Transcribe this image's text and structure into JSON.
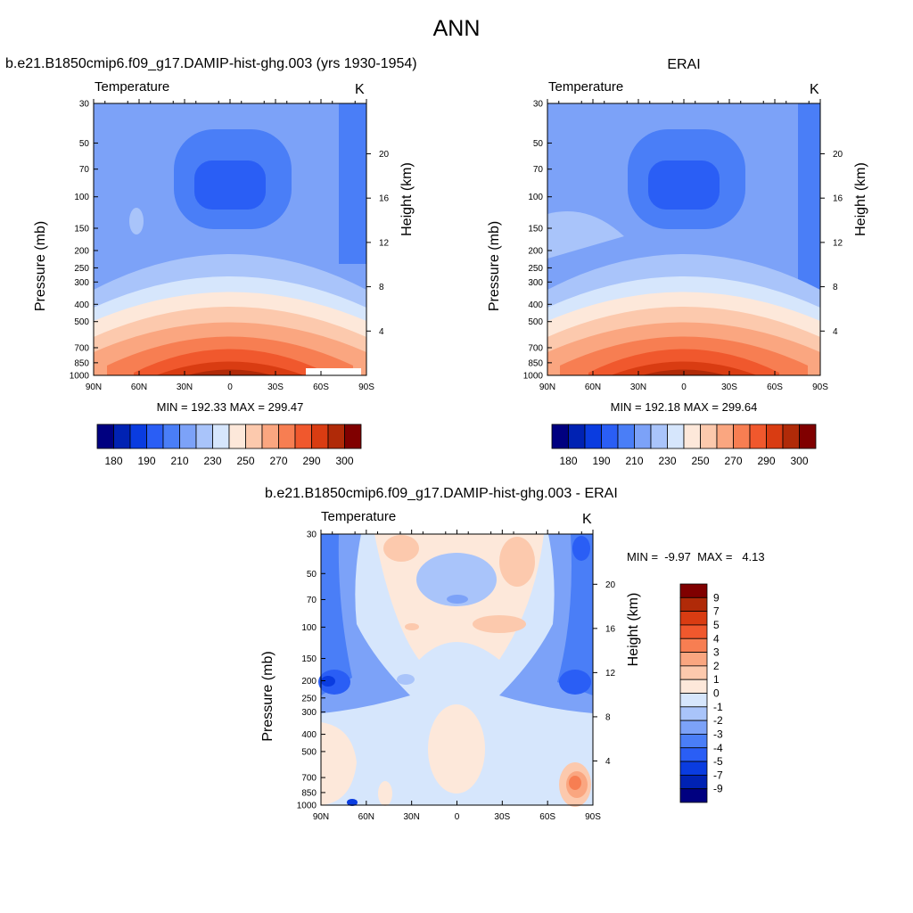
{
  "title": "ANN",
  "panel_left": {
    "title": "b.e21.B1850cmip6.f09_g17.DAMIP-hist-ghg.003 (yrs 1930-1954)",
    "variable": "Temperature",
    "unit": "K",
    "minmax": "MIN = 192.33  MAX = 299.47"
  },
  "panel_right": {
    "title": "ERAI",
    "variable": "Temperature",
    "unit": "K",
    "minmax": "MIN = 192.18  MAX = 299.64"
  },
  "panel_diff": {
    "title": "b.e21.B1850cmip6.f09_g17.DAMIP-hist-ghg.003 - ERAI",
    "variable": "Temperature",
    "unit": "K",
    "minmax": "MIN =  -9.97  MAX =   4.13"
  },
  "axes": {
    "ylabel_left": "Pressure (mb)",
    "ylabel_right": "Height (km)",
    "pressure_ticks": [
      "30",
      "50",
      "70",
      "100",
      "150",
      "200",
      "250",
      "300",
      "400",
      "500",
      "700",
      "850",
      "1000"
    ],
    "height_ticks": [
      "4",
      "8",
      "12",
      "16",
      "20"
    ],
    "lat_ticks": [
      "90N",
      "60N",
      "30N",
      "0",
      "30S",
      "60S",
      "90S"
    ]
  },
  "colorbar_abs": {
    "colors": [
      "#000080",
      "#0022b3",
      "#0a3ce0",
      "#2a5ef5",
      "#4a7ef7",
      "#7ca2f8",
      "#a9c4fa",
      "#d6e6fc",
      "#fde8da",
      "#fcc9ad",
      "#faa680",
      "#f77e52",
      "#f0582d",
      "#d93c12",
      "#b02a08",
      "#800000"
    ],
    "labels": [
      "180",
      "190",
      "210",
      "230",
      "250",
      "270",
      "290",
      "300"
    ]
  },
  "colorbar_diff": {
    "colors": [
      "#000080",
      "#0022b3",
      "#0a3ce0",
      "#2a5ef5",
      "#4a7ef7",
      "#7ca2f8",
      "#a9c4fa",
      "#d6e6fc",
      "#fde8da",
      "#fcc9ad",
      "#faa680",
      "#f77e52",
      "#f0582d",
      "#d93c12",
      "#b02a08",
      "#800000"
    ],
    "labels": [
      "-9",
      "-7",
      "-5",
      "-4",
      "-3",
      "-2",
      "-1",
      "0",
      "1",
      "2",
      "3",
      "4",
      "5",
      "7",
      "9"
    ]
  },
  "chart_data": [
    {
      "type": "heatmap",
      "title": "b.e21.B1850cmip6.f09_g17.DAMIP-hist-ghg.003 (yrs 1930-1954)",
      "subtitle": "Temperature",
      "unit": "K",
      "xlabel": "",
      "ylabel": "Pressure (mb)",
      "ylabel_right": "Height (km)",
      "x_ticks": [
        "90N",
        "60N",
        "30N",
        "0",
        "30S",
        "60S",
        "90S"
      ],
      "y_ticks": [
        30,
        50,
        70,
        100,
        150,
        200,
        250,
        300,
        400,
        500,
        700,
        850,
        1000
      ],
      "y_scale": "log",
      "colorbar_levels": [
        180,
        190,
        210,
        230,
        250,
        270,
        290,
        300
      ],
      "min": 192.33,
      "max": 299.47
    },
    {
      "type": "heatmap",
      "title": "ERAI",
      "subtitle": "Temperature",
      "unit": "K",
      "xlabel": "",
      "ylabel": "Pressure (mb)",
      "ylabel_right": "Height (km)",
      "x_ticks": [
        "90N",
        "60N",
        "30N",
        "0",
        "30S",
        "60S",
        "90S"
      ],
      "y_ticks": [
        30,
        50,
        70,
        100,
        150,
        200,
        250,
        300,
        400,
        500,
        700,
        850,
        1000
      ],
      "y_scale": "log",
      "colorbar_levels": [
        180,
        190,
        210,
        230,
        250,
        270,
        290,
        300
      ],
      "min": 192.18,
      "max": 299.64
    },
    {
      "type": "heatmap",
      "title": "b.e21.B1850cmip6.f09_g17.DAMIP-hist-ghg.003 - ERAI",
      "subtitle": "Temperature",
      "unit": "K",
      "xlabel": "",
      "ylabel": "Pressure (mb)",
      "ylabel_right": "Height (km)",
      "x_ticks": [
        "90N",
        "60N",
        "30N",
        "0",
        "30S",
        "60S",
        "90S"
      ],
      "y_ticks": [
        30,
        50,
        70,
        100,
        150,
        200,
        250,
        300,
        400,
        500,
        700,
        850,
        1000
      ],
      "y_scale": "log",
      "colorbar_levels": [
        -9,
        -7,
        -5,
        -4,
        -3,
        -2,
        -1,
        0,
        1,
        2,
        3,
        4,
        5,
        7,
        9
      ],
      "min": -9.97,
      "max": 4.13
    }
  ]
}
